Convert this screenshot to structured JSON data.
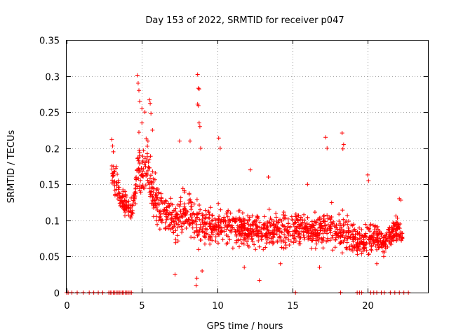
{
  "chart_data": {
    "type": "scatter",
    "title": "Day 153 of 2022, SRMTID for receiver p047",
    "xlabel": "GPS time / hours",
    "ylabel": "SRMTID / TECUs",
    "xlim": [
      0,
      24
    ],
    "ylim": [
      0,
      0.35
    ],
    "x_ticks": [
      0,
      5,
      10,
      15,
      20
    ],
    "x_tick_labels": [
      "0",
      "5",
      "10",
      "15",
      "20"
    ],
    "y_ticks": [
      0,
      0.05,
      0.1,
      0.15,
      0.2,
      0.25,
      0.3,
      0.35
    ],
    "y_tick_labels": [
      "0",
      "0.05",
      "0.1",
      "0.15",
      "0.2",
      "0.25",
      "0.3",
      "0.35"
    ],
    "grid": true,
    "marker": "plus",
    "color": "#ff0000",
    "series": [
      {
        "name": "SRMTID",
        "envelope": [
          {
            "x": 3.0,
            "y": 0.17,
            "spread": 0.035
          },
          {
            "x": 3.8,
            "y": 0.12,
            "spread": 0.03
          },
          {
            "x": 4.4,
            "y": 0.12,
            "spread": 0.03
          },
          {
            "x": 4.8,
            "y": 0.17,
            "spread": 0.06
          },
          {
            "x": 5.4,
            "y": 0.17,
            "spread": 0.06
          },
          {
            "x": 6.0,
            "y": 0.12,
            "spread": 0.05
          },
          {
            "x": 7.0,
            "y": 0.1,
            "spread": 0.05
          },
          {
            "x": 8.0,
            "y": 0.11,
            "spread": 0.05
          },
          {
            "x": 8.6,
            "y": 0.1,
            "spread": 0.06
          },
          {
            "x": 9.5,
            "y": 0.09,
            "spread": 0.045
          },
          {
            "x": 10.5,
            "y": 0.09,
            "spread": 0.045
          },
          {
            "x": 11.5,
            "y": 0.09,
            "spread": 0.04
          },
          {
            "x": 12.5,
            "y": 0.085,
            "spread": 0.04
          },
          {
            "x": 13.5,
            "y": 0.085,
            "spread": 0.04
          },
          {
            "x": 14.5,
            "y": 0.09,
            "spread": 0.04
          },
          {
            "x": 15.5,
            "y": 0.09,
            "spread": 0.04
          },
          {
            "x": 16.5,
            "y": 0.085,
            "spread": 0.04
          },
          {
            "x": 17.5,
            "y": 0.09,
            "spread": 0.045
          },
          {
            "x": 18.5,
            "y": 0.08,
            "spread": 0.04
          },
          {
            "x": 19.5,
            "y": 0.07,
            "spread": 0.03
          },
          {
            "x": 20.0,
            "y": 0.08,
            "spread": 0.04
          },
          {
            "x": 21.0,
            "y": 0.07,
            "spread": 0.025
          },
          {
            "x": 22.0,
            "y": 0.09,
            "spread": 0.03
          },
          {
            "x": 22.3,
            "y": 0.075,
            "spread": 0.015
          }
        ],
        "high_points": [
          {
            "x": 4.7,
            "y": 0.301
          },
          {
            "x": 4.75,
            "y": 0.29
          },
          {
            "x": 4.8,
            "y": 0.28
          },
          {
            "x": 4.85,
            "y": 0.265
          },
          {
            "x": 5.0,
            "y": 0.255
          },
          {
            "x": 5.2,
            "y": 0.25
          },
          {
            "x": 5.5,
            "y": 0.267
          },
          {
            "x": 5.55,
            "y": 0.262
          },
          {
            "x": 5.6,
            "y": 0.248
          },
          {
            "x": 5.0,
            "y": 0.235
          },
          {
            "x": 5.7,
            "y": 0.225
          },
          {
            "x": 4.8,
            "y": 0.222
          },
          {
            "x": 5.4,
            "y": 0.21
          },
          {
            "x": 8.7,
            "y": 0.302
          },
          {
            "x": 8.75,
            "y": 0.283
          },
          {
            "x": 8.8,
            "y": 0.282
          },
          {
            "x": 8.7,
            "y": 0.261
          },
          {
            "x": 8.75,
            "y": 0.259
          },
          {
            "x": 8.8,
            "y": 0.235
          },
          {
            "x": 8.85,
            "y": 0.23
          },
          {
            "x": 8.9,
            "y": 0.2
          },
          {
            "x": 8.2,
            "y": 0.21
          },
          {
            "x": 3.0,
            "y": 0.212
          },
          {
            "x": 3.05,
            "y": 0.203
          },
          {
            "x": 3.1,
            "y": 0.195
          },
          {
            "x": 7.5,
            "y": 0.21
          },
          {
            "x": 17.2,
            "y": 0.215
          },
          {
            "x": 17.3,
            "y": 0.2
          },
          {
            "x": 18.3,
            "y": 0.221
          },
          {
            "x": 18.4,
            "y": 0.205
          },
          {
            "x": 18.35,
            "y": 0.199
          },
          {
            "x": 10.1,
            "y": 0.214
          },
          {
            "x": 10.2,
            "y": 0.2
          },
          {
            "x": 20.0,
            "y": 0.163
          },
          {
            "x": 20.05,
            "y": 0.155
          },
          {
            "x": 12.2,
            "y": 0.17
          },
          {
            "x": 13.4,
            "y": 0.16
          },
          {
            "x": 16.0,
            "y": 0.15
          },
          {
            "x": 22.1,
            "y": 0.13
          },
          {
            "x": 22.2,
            "y": 0.128
          }
        ],
        "low_points": [
          {
            "x": 8.6,
            "y": 0.01
          },
          {
            "x": 8.65,
            "y": 0.02
          },
          {
            "x": 9.0,
            "y": 0.03
          },
          {
            "x": 12.8,
            "y": 0.017
          },
          {
            "x": 7.2,
            "y": 0.025
          },
          {
            "x": 20.6,
            "y": 0.04
          },
          {
            "x": 16.8,
            "y": 0.035
          },
          {
            "x": 14.2,
            "y": 0.04
          },
          {
            "x": 11.8,
            "y": 0.035
          }
        ],
        "zero_points_x": [
          0.0,
          0.1,
          0.35,
          0.7,
          1.1,
          1.5,
          1.8,
          2.1,
          2.4,
          2.8,
          2.9,
          3.0,
          3.1,
          3.2,
          3.3,
          3.4,
          3.5,
          3.6,
          3.7,
          3.8,
          3.9,
          4.0,
          4.1,
          4.2,
          4.3,
          15.2,
          18.2,
          19.3,
          19.45,
          19.6,
          20.2,
          20.4,
          20.6,
          20.9,
          21.1,
          21.5,
          21.8,
          22.1,
          22.4,
          22.7
        ]
      }
    ]
  }
}
